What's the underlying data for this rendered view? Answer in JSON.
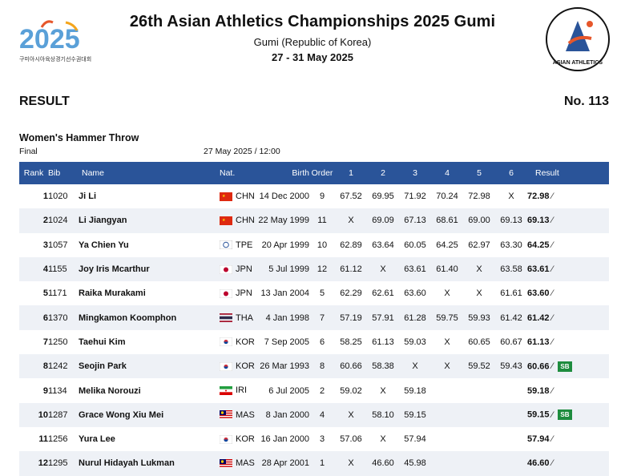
{
  "header": {
    "title": "26th Asian Athletics Championships 2025 Gumi",
    "location": "Gumi (Republic of Korea)",
    "dates": "27 - 31 May 2025",
    "left_logo_text": "2025",
    "left_logo_subtext": "구미아시아육상경기선수권대회",
    "right_logo_text": "ASIAN ATHLETICS"
  },
  "doc": {
    "result_label": "RESULT",
    "result_number": "No. 113",
    "event": "Women's Hammer Throw",
    "round": "Final",
    "datetime": "27 May 2025 / 12:00"
  },
  "table": {
    "headers": {
      "rank": "Rank",
      "bib": "Bib",
      "name": "Name",
      "nat": "Nat.",
      "birth": "Birth",
      "order": "Order",
      "a1": "1",
      "a2": "2",
      "a3": "3",
      "a4": "4",
      "a5": "5",
      "a6": "6",
      "result": "Result"
    },
    "rows": [
      {
        "rank": "1",
        "bib": "1020",
        "name": "Ji Li",
        "nat": "CHN",
        "birth": "14 Dec 2000",
        "order": "9",
        "a1": "67.52",
        "a2": "69.95",
        "a3": "71.92",
        "a4": "70.24",
        "a5": "72.98",
        "a6": "X",
        "result": "72.98",
        "mark": ""
      },
      {
        "rank": "2",
        "bib": "1024",
        "name": "Li Jiangyan",
        "nat": "CHN",
        "birth": "22 May 1999",
        "order": "11",
        "a1": "X",
        "a2": "69.09",
        "a3": "67.13",
        "a4": "68.61",
        "a5": "69.00",
        "a6": "69.13",
        "result": "69.13",
        "mark": ""
      },
      {
        "rank": "3",
        "bib": "1057",
        "name": "Ya Chien Yu",
        "nat": "TPE",
        "birth": "20 Apr 1999",
        "order": "10",
        "a1": "62.89",
        "a2": "63.64",
        "a3": "60.05",
        "a4": "64.25",
        "a5": "62.97",
        "a6": "63.30",
        "result": "64.25",
        "mark": ""
      },
      {
        "rank": "4",
        "bib": "1155",
        "name": "Joy Iris Mcarthur",
        "nat": "JPN",
        "birth": "5 Jul 1999",
        "order": "12",
        "a1": "61.12",
        "a2": "X",
        "a3": "63.61",
        "a4": "61.40",
        "a5": "X",
        "a6": "63.58",
        "result": "63.61",
        "mark": ""
      },
      {
        "rank": "5",
        "bib": "1171",
        "name": "Raika Murakami",
        "nat": "JPN",
        "birth": "13 Jan 2004",
        "order": "5",
        "a1": "62.29",
        "a2": "62.61",
        "a3": "63.60",
        "a4": "X",
        "a5": "X",
        "a6": "61.61",
        "result": "63.60",
        "mark": ""
      },
      {
        "rank": "6",
        "bib": "1370",
        "name": "Mingkamon Koomphon",
        "nat": "THA",
        "birth": "4 Jan 1998",
        "order": "7",
        "a1": "57.19",
        "a2": "57.91",
        "a3": "61.28",
        "a4": "59.75",
        "a5": "59.93",
        "a6": "61.42",
        "result": "61.42",
        "mark": ""
      },
      {
        "rank": "7",
        "bib": "1250",
        "name": "Taehui Kim",
        "nat": "KOR",
        "birth": "7 Sep 2005",
        "order": "6",
        "a1": "58.25",
        "a2": "61.13",
        "a3": "59.03",
        "a4": "X",
        "a5": "60.65",
        "a6": "60.67",
        "result": "61.13",
        "mark": ""
      },
      {
        "rank": "8",
        "bib": "1242",
        "name": "Seojin Park",
        "nat": "KOR",
        "birth": "26 Mar 1993",
        "order": "8",
        "a1": "60.66",
        "a2": "58.38",
        "a3": "X",
        "a4": "X",
        "a5": "59.52",
        "a6": "59.43",
        "result": "60.66",
        "mark": "SB"
      },
      {
        "rank": "9",
        "bib": "1134",
        "name": "Melika Norouzi",
        "nat": "IRI",
        "birth": "6 Jul 2005",
        "order": "2",
        "a1": "59.02",
        "a2": "X",
        "a3": "59.18",
        "a4": "",
        "a5": "",
        "a6": "",
        "result": "59.18",
        "mark": ""
      },
      {
        "rank": "10",
        "bib": "1287",
        "name": "Grace Wong Xiu Mei",
        "nat": "MAS",
        "birth": "8 Jan 2000",
        "order": "4",
        "a1": "X",
        "a2": "58.10",
        "a3": "59.15",
        "a4": "",
        "a5": "",
        "a6": "",
        "result": "59.15",
        "mark": "SB"
      },
      {
        "rank": "11",
        "bib": "1256",
        "name": "Yura Lee",
        "nat": "KOR",
        "birth": "16 Jan 2000",
        "order": "3",
        "a1": "57.06",
        "a2": "X",
        "a3": "57.94",
        "a4": "",
        "a5": "",
        "a6": "",
        "result": "57.94",
        "mark": ""
      },
      {
        "rank": "12",
        "bib": "1295",
        "name": "Nurul Hidayah Lukman",
        "nat": "MAS",
        "birth": "28 Apr 2001",
        "order": "1",
        "a1": "X",
        "a2": "46.60",
        "a3": "45.98",
        "a4": "",
        "a5": "",
        "a6": "",
        "result": "46.60",
        "mark": ""
      }
    ]
  },
  "colors": {
    "header_bg": "#2a5499",
    "sb_badge": "#1e8c3e"
  }
}
